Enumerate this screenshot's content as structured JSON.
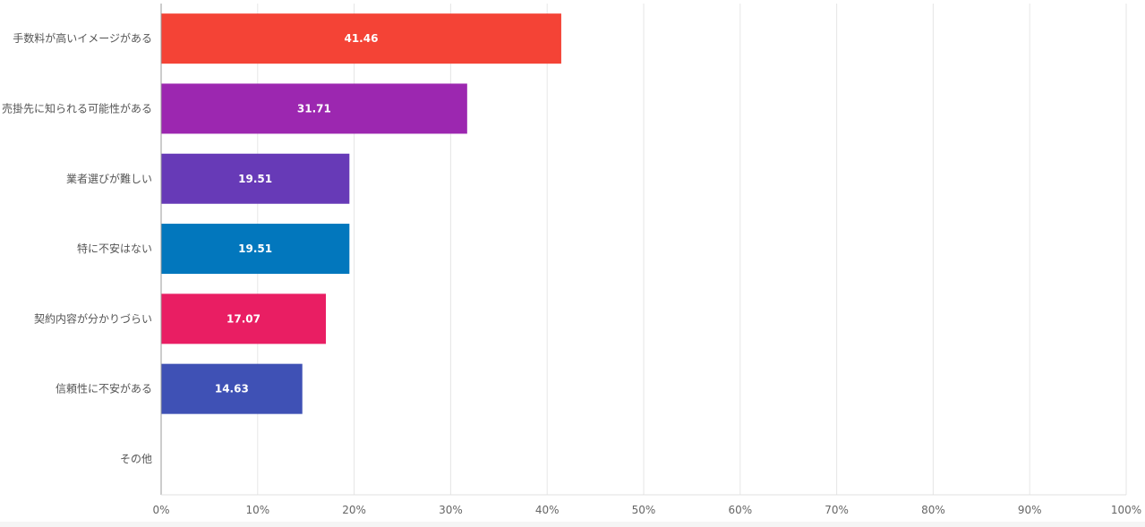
{
  "chart_data": {
    "type": "bar",
    "orientation": "horizontal",
    "categories": [
      "手数料が高いイメージがある",
      "売掛先に知られる可能性がある",
      "業者選びが難しい",
      "特に不安はない",
      "契約内容が分かりづらい",
      "信頼性に不安がある",
      "その他"
    ],
    "values": [
      41.46,
      31.71,
      19.51,
      19.51,
      17.07,
      14.63,
      null
    ],
    "value_labels": [
      "41.46",
      "31.71",
      "19.51",
      "19.51",
      "17.07",
      "14.63",
      ""
    ],
    "colors": [
      "#f44336",
      "#9c27b0",
      "#673ab7",
      "#0277bd",
      "#e91e63",
      "#3f51b5",
      "#9e9e9e"
    ],
    "xlim": [
      0,
      100
    ],
    "x_ticks": [
      0,
      10,
      20,
      30,
      40,
      50,
      60,
      70,
      80,
      90,
      100
    ],
    "x_tick_labels": [
      "0%",
      "10%",
      "20%",
      "30%",
      "40%",
      "50%",
      "60%",
      "70%",
      "80%",
      "90%",
      "100%"
    ],
    "grid": true,
    "legend": "none"
  }
}
